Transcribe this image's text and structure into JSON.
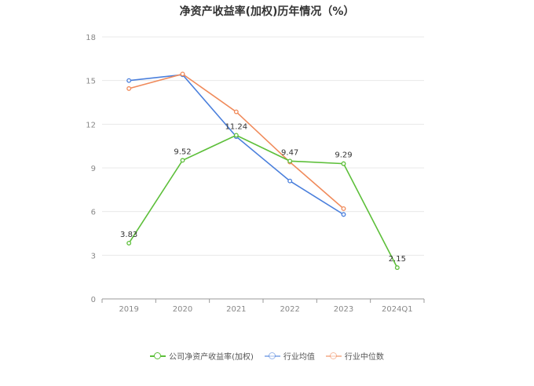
{
  "chart_data": {
    "type": "line",
    "title": "净资产收益率(加权)历年情况（%）",
    "categories": [
      "2019",
      "2020",
      "2021",
      "2022",
      "2023",
      "2024Q1"
    ],
    "ylim": [
      0,
      18
    ],
    "yticks": [
      0,
      3,
      6,
      9,
      12,
      15,
      18
    ],
    "grid": true,
    "legend_position": "bottom",
    "series": [
      {
        "name": "公司净资产收益率(加权)",
        "color": "#5dbf3a",
        "values": [
          3.83,
          9.52,
          11.24,
          9.47,
          9.29,
          2.15
        ],
        "labels": [
          "3.83",
          "9.52",
          "11.24",
          "9.47",
          "9.29",
          "2.15"
        ]
      },
      {
        "name": "行业均值",
        "color": "#4a7fdc",
        "values": [
          15.0,
          15.4,
          11.15,
          8.1,
          5.8,
          null
        ]
      },
      {
        "name": "行业中位数",
        "color": "#f08a5a",
        "values": [
          14.45,
          15.45,
          12.85,
          9.4,
          6.2,
          null
        ]
      }
    ]
  }
}
